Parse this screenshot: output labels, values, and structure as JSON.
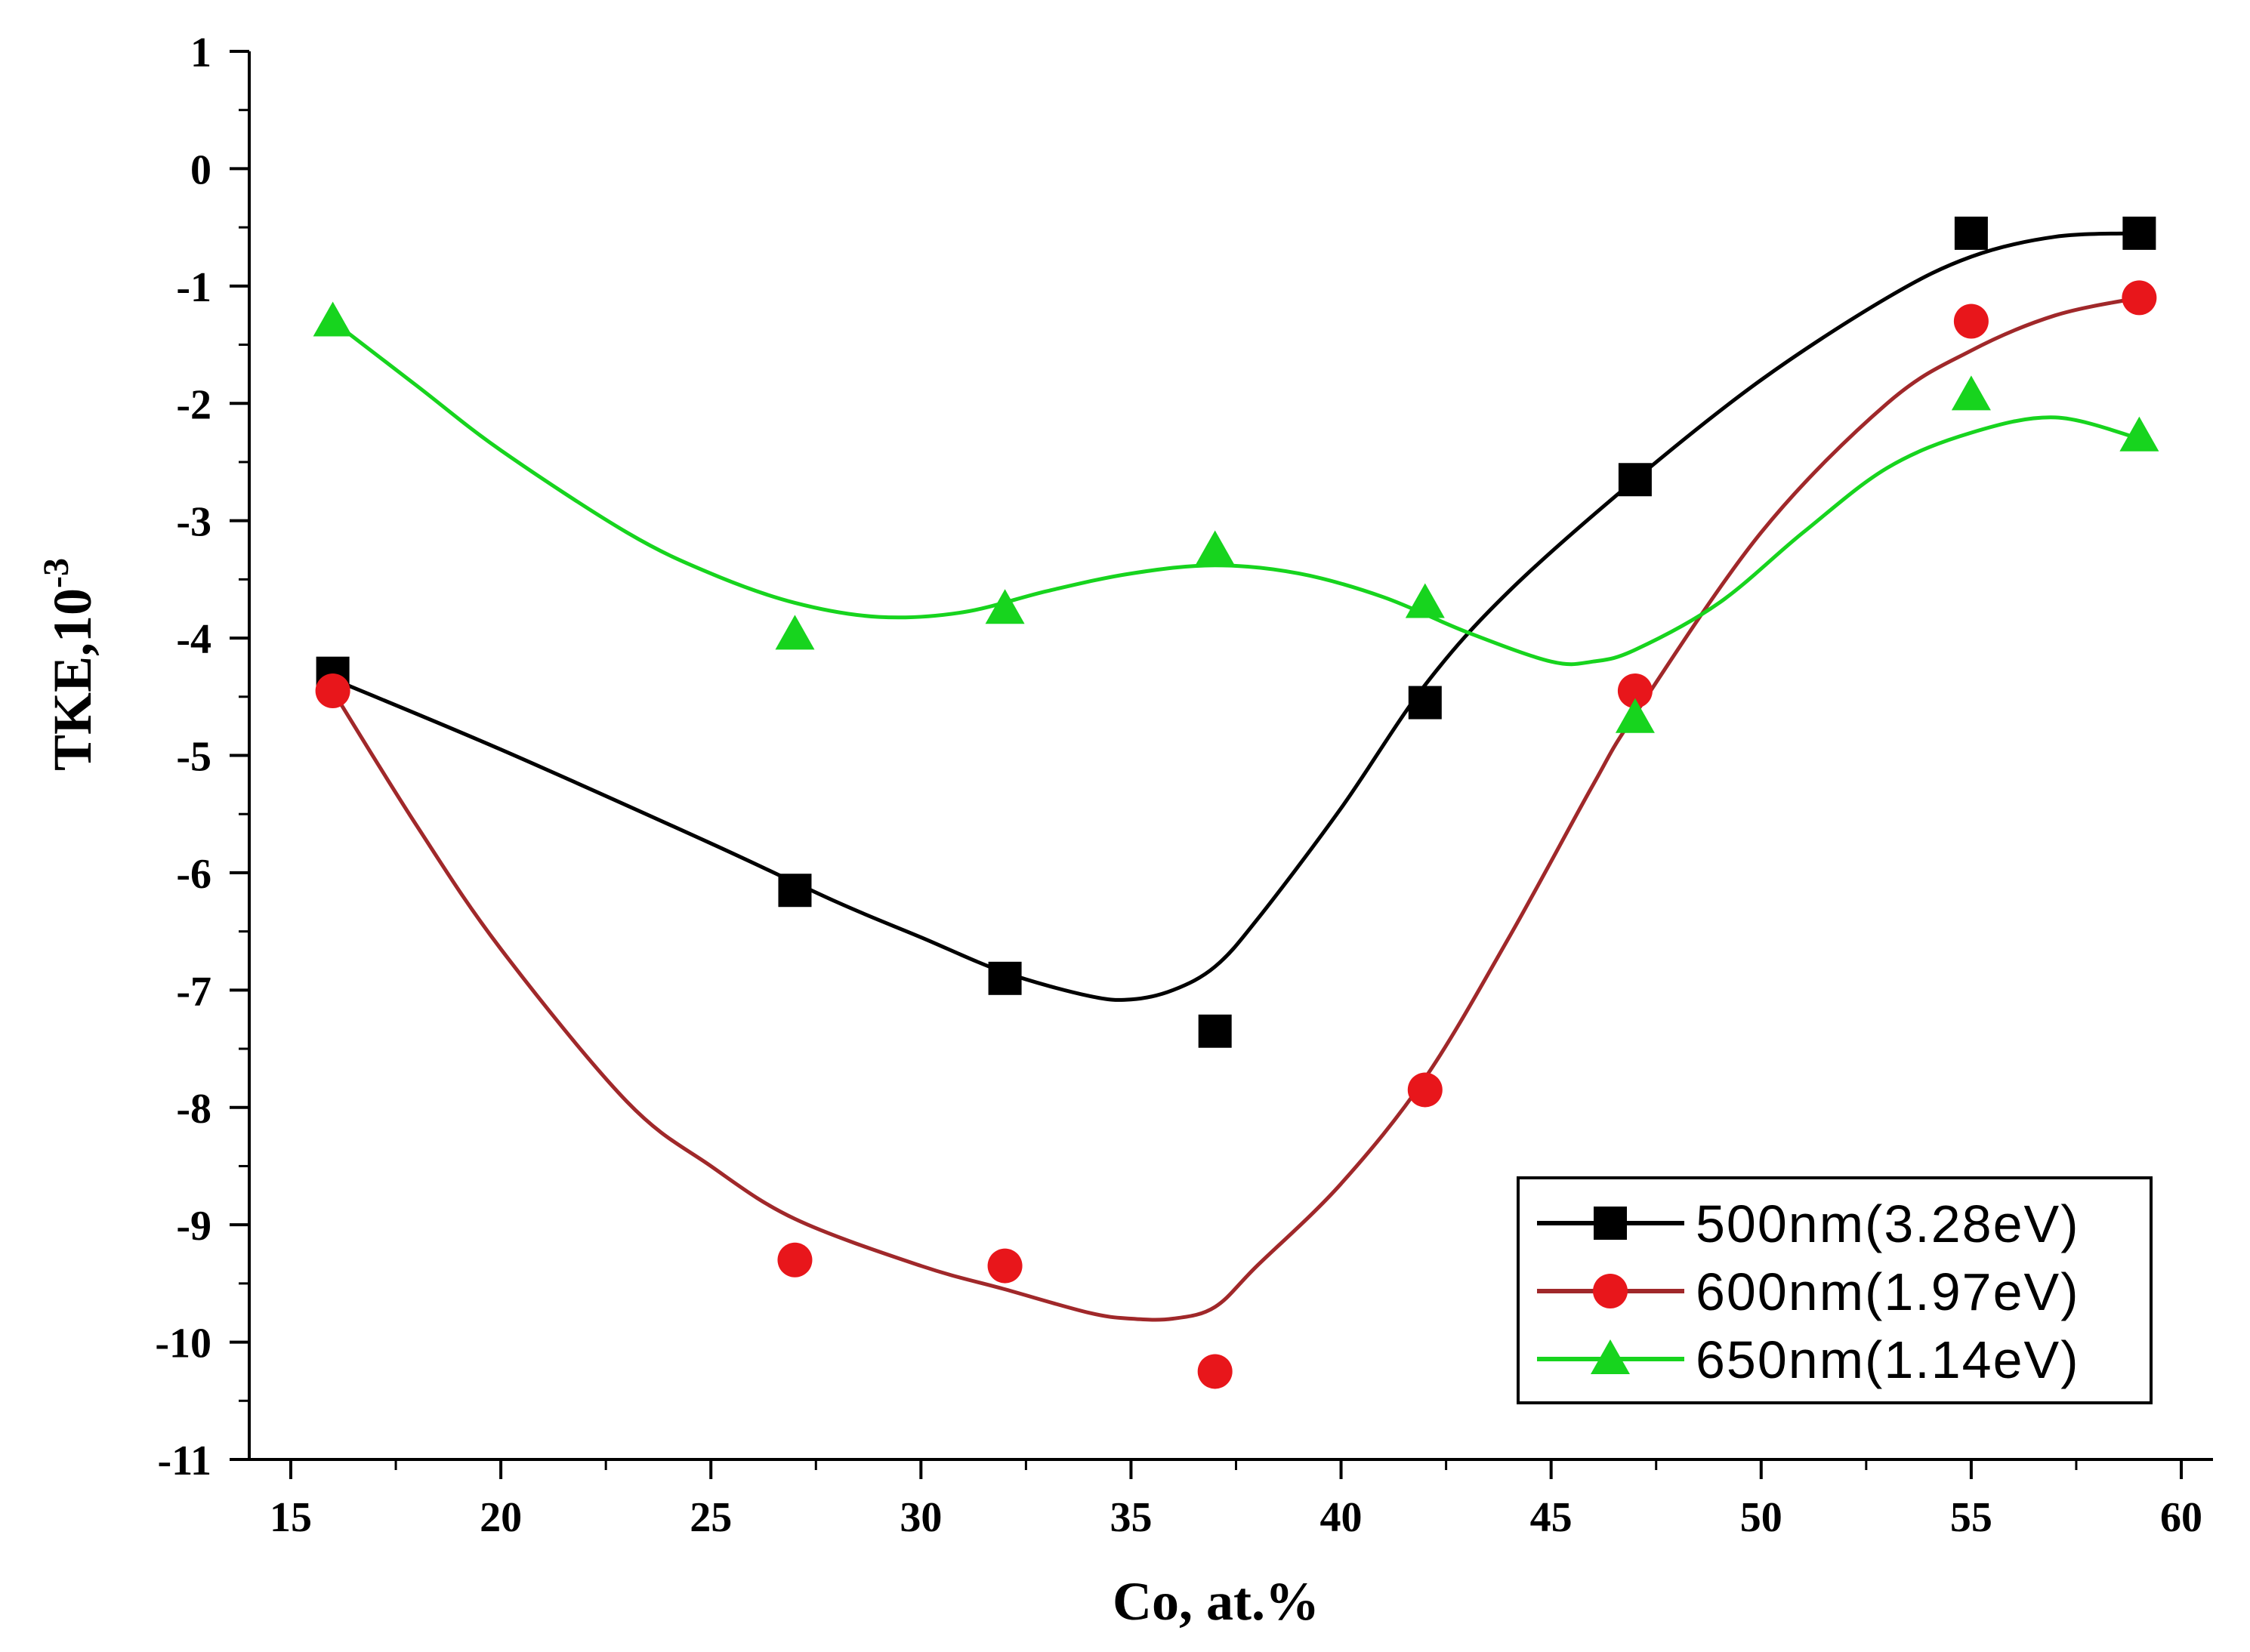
{
  "chart_data": {
    "type": "scatter",
    "xlabel": "Co, at.%",
    "ylabel": "TKE,10",
    "ylabel_exponent": "-3",
    "xlim": [
      14,
      61
    ],
    "ylim": [
      -11,
      1
    ],
    "xticks": [
      15,
      20,
      25,
      30,
      35,
      40,
      45,
      50,
      55,
      60
    ],
    "yticks": [
      1,
      0,
      -1,
      -2,
      -3,
      -4,
      -5,
      -6,
      -7,
      -8,
      -9,
      -10,
      -11
    ],
    "grid": false,
    "legend_position": "bottom-right",
    "series": [
      {
        "name": "500nm(3.28eV)",
        "color": "#000000",
        "marker": "square",
        "x": [
          16,
          27,
          32,
          37,
          42,
          47,
          55,
          59
        ],
        "y": [
          -4.3,
          -6.15,
          -6.9,
          -7.35,
          -4.55,
          -2.65,
          -0.55,
          -0.55
        ],
        "fit_x": [
          16,
          20,
          25,
          28,
          30,
          32,
          34,
          35,
          36,
          37,
          38,
          40,
          42,
          44,
          47,
          50,
          53,
          55,
          57,
          59
        ],
        "fit_y": [
          -4.35,
          -4.95,
          -5.75,
          -6.25,
          -6.55,
          -6.85,
          -7.05,
          -7.08,
          -7.0,
          -6.8,
          -6.4,
          -5.45,
          -4.4,
          -3.6,
          -2.65,
          -1.8,
          -1.1,
          -0.75,
          -0.58,
          -0.55
        ]
      },
      {
        "name": "600nm(1.97eV)",
        "color": "#e8161b",
        "line_color": "#a0282a",
        "marker": "circle",
        "x": [
          16,
          27,
          32,
          37,
          42,
          47,
          55,
          59
        ],
        "y": [
          -4.45,
          -9.3,
          -9.35,
          -10.25,
          -7.85,
          -4.45,
          -1.3,
          -1.1
        ],
        "fit_x": [
          16,
          18,
          20,
          23,
          25,
          27,
          30,
          32,
          34,
          35,
          36,
          37,
          38,
          40,
          42,
          44,
          46,
          47,
          50,
          53,
          55,
          57,
          59
        ],
        "fit_y": [
          -4.45,
          -5.6,
          -6.65,
          -7.95,
          -8.5,
          -8.95,
          -9.35,
          -9.55,
          -9.75,
          -9.8,
          -9.8,
          -9.7,
          -9.35,
          -8.65,
          -7.75,
          -6.55,
          -5.25,
          -4.65,
          -3.1,
          -2.0,
          -1.55,
          -1.25,
          -1.1
        ]
      },
      {
        "name": "650nm(1.14eV)",
        "color": "#17d41e",
        "marker": "triangle",
        "x": [
          16,
          27,
          32,
          37,
          42,
          47,
          55,
          59
        ],
        "y": [
          -1.3,
          -3.97,
          -3.75,
          -3.25,
          -3.7,
          -4.68,
          -1.93,
          -2.28
        ],
        "fit_x": [
          16,
          18,
          20,
          23,
          25,
          27,
          29,
          31,
          33,
          35,
          37,
          39,
          41,
          43,
          45,
          46,
          47,
          49,
          51,
          53,
          55,
          57,
          59
        ],
        "fit_y": [
          -1.3,
          -1.85,
          -2.4,
          -3.1,
          -3.45,
          -3.7,
          -3.82,
          -3.78,
          -3.6,
          -3.45,
          -3.38,
          -3.45,
          -3.65,
          -3.95,
          -4.2,
          -4.2,
          -4.1,
          -3.7,
          -3.1,
          -2.55,
          -2.25,
          -2.12,
          -2.3
        ]
      }
    ]
  }
}
